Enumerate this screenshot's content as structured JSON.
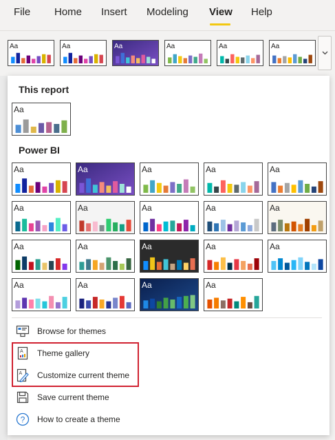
{
  "ribbon": {
    "tabs": [
      "File",
      "Home",
      "Insert",
      "Modeling",
      "View",
      "Help"
    ],
    "active_tab": "View"
  },
  "theme_label_text": "Aa",
  "sections": {
    "this_report": "This report",
    "power_bi": "Power BI"
  },
  "menu": {
    "browse": "Browse for themes",
    "gallery": "Theme gallery",
    "customize": "Customize current theme",
    "save": "Save current theme",
    "howto": "How to create a theme"
  },
  "colors": {
    "highlight": "#d0202f",
    "active_underline": "#f2c811"
  },
  "icons": {
    "expand": "chevron-down-icon",
    "browse": "browse-folder-icon",
    "gallery": "theme-gallery-icon",
    "customize": "customize-pencil-icon",
    "save": "save-icon",
    "howto": "help-circle-icon"
  }
}
